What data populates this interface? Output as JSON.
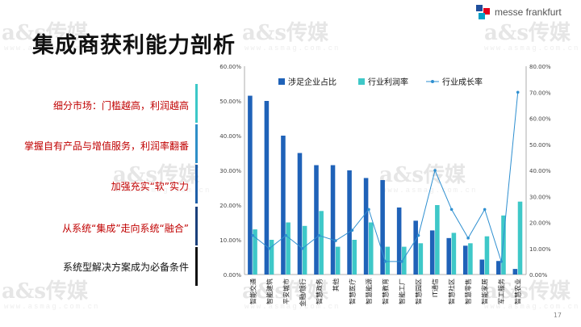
{
  "title": "集成商获利能力剖析",
  "logo": {
    "text": "messe frankfurt",
    "colors": [
      "#1f4e9c",
      "#e2001a",
      "#00a0c6"
    ]
  },
  "watermark": {
    "brand": "a&s传媒",
    "url": "www.asmag.com.cn"
  },
  "bullets": [
    "细分市场：门槛越高，利润越高",
    "掌握自有产品与增值服务，利润率翻番",
    "加强充实“软”实力",
    "从系统“集成”走向系统“融合”",
    "系统型解决方案成为必备条件"
  ],
  "divider_colors": [
    "#3cc8c8",
    "#2e8fc8",
    "#1f5fa8",
    "#1a3f7a",
    "#111111"
  ],
  "page_number": "17",
  "chart_data": {
    "type": "bar",
    "categories": [
      "智能交通",
      "智能建筑",
      "平安城市",
      "金融/银行",
      "智慧政务",
      "其他",
      "智慧医疗",
      "智慧能源",
      "智慧教育",
      "智能工厂",
      "智慧园区",
      "IT通信",
      "智慧社区",
      "智慧零售",
      "智能家居",
      "军工服务",
      "智慧农业"
    ],
    "series": [
      {
        "name": "涉足企业占比",
        "axis": "left",
        "kind": "bar",
        "color": "#1f62b8",
        "values": [
          51.5,
          50.0,
          40.0,
          35.0,
          31.5,
          31.5,
          30.0,
          27.8,
          27.2,
          19.3,
          15.5,
          12.7,
          10.5,
          8.3,
          4.3,
          3.9,
          1.6
        ]
      },
      {
        "name": "行业利润率",
        "axis": "left",
        "kind": "bar",
        "color": "#3ec8c8",
        "values": [
          13.0,
          10.0,
          15.0,
          14.0,
          18.3,
          8.0,
          10.0,
          15.0,
          8.0,
          8.0,
          9.0,
          20.0,
          12.0,
          9.0,
          11.0,
          17.0,
          21.0
        ]
      },
      {
        "name": "行业成长率",
        "axis": "right",
        "kind": "line",
        "color": "#2e8fd0",
        "values": [
          15.0,
          10.0,
          15.0,
          10.0,
          15.0,
          13.0,
          17.0,
          25.0,
          5.0,
          5.0,
          15.0,
          40.0,
          25.0,
          14.0,
          25.0,
          5.0,
          70.0
        ]
      }
    ],
    "y_left": {
      "min": 0,
      "max": 60,
      "step": 10,
      "format": "percent2"
    },
    "y_right": {
      "min": 0,
      "max": 80,
      "step": 10,
      "format": "percent2"
    },
    "legend_position": "top",
    "grid": false
  }
}
